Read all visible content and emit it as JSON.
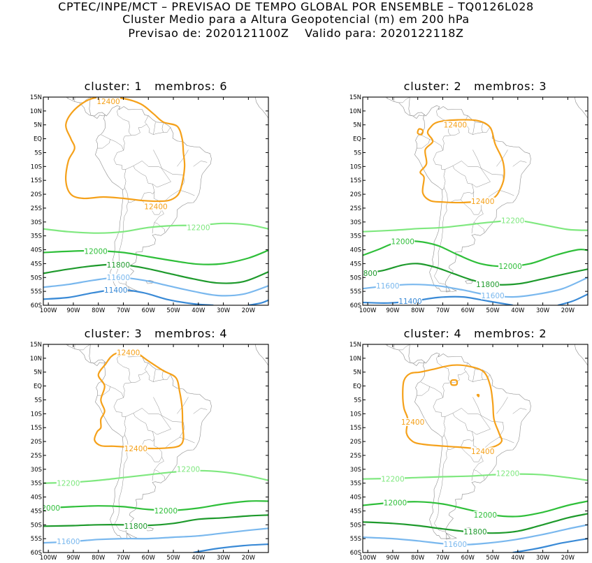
{
  "header": {
    "line1": "CPTEC/INPE/MCT – PREVISAO DE TEMPO GLOBAL POR ENSEMBLE – TQ0126L028",
    "line2": "Cluster Medio para a Altura Geopotencial (m) em 200 hPa",
    "line3": "Previsao de: 2020121100Z    Valido para: 2020122118Z"
  },
  "axes": {
    "lat_labels": [
      "15N",
      "10N",
      "5N",
      "EQ",
      "5S",
      "10S",
      "15S",
      "20S",
      "25S",
      "30S",
      "35S",
      "40S",
      "45S",
      "50S",
      "55S",
      "60S"
    ],
    "lon_labels": [
      "100W",
      "90W",
      "80W",
      "70W",
      "60W",
      "50W",
      "40W",
      "30W",
      "20W"
    ]
  },
  "colors": {
    "c12400": "#f5a11a",
    "c12200": "#7fe87f",
    "c12000": "#2fbf3a",
    "c11800": "#1e9a2c",
    "c11600": "#7ab8ee",
    "c11400": "#3a8ad6",
    "coast": "#8c8c8c"
  },
  "panels": [
    {
      "title": "cluster: 1   membros: 6",
      "labels": [
        {
          "text": "12400",
          "lon": -76,
          "lat": 13.5,
          "color": "c12400"
        },
        {
          "text": "12400",
          "lon": -57,
          "lat": -24.5,
          "color": "c12400"
        },
        {
          "text": "12200",
          "lon": -40,
          "lat": -32,
          "color": "c12200"
        },
        {
          "text": "12000",
          "lon": -81,
          "lat": -40.5,
          "color": "c12000"
        },
        {
          "text": "11800",
          "lon": -72,
          "lat": -45.5,
          "color": "c11800"
        },
        {
          "text": "11600",
          "lon": -72,
          "lat": -50,
          "color": "c11600"
        },
        {
          "text": "11400",
          "lon": -73,
          "lat": -54.5,
          "color": "c11400"
        }
      ]
    },
    {
      "title": "cluster: 2   membros: 3",
      "labels": [
        {
          "text": "12400",
          "lon": -65,
          "lat": 5,
          "color": "c12400"
        },
        {
          "text": "12400",
          "lon": -54,
          "lat": -22.5,
          "color": "c12400"
        },
        {
          "text": "12200",
          "lon": -42,
          "lat": -29.5,
          "color": "c12200"
        },
        {
          "text": "12000",
          "lon": -86,
          "lat": -37,
          "color": "c12000"
        },
        {
          "text": "12000",
          "lon": -43,
          "lat": -46,
          "color": "c12000"
        },
        {
          "text": "800",
          "lon": -99,
          "lat": -48.5,
          "color": "c11800"
        },
        {
          "text": "11800",
          "lon": -52,
          "lat": -52.5,
          "color": "c11800"
        },
        {
          "text": "11600",
          "lon": -92,
          "lat": -53,
          "color": "c11600"
        },
        {
          "text": "11600",
          "lon": -50,
          "lat": -56.5,
          "color": "c11600"
        },
        {
          "text": "11400",
          "lon": -83,
          "lat": -58.5,
          "color": "c11400"
        }
      ]
    },
    {
      "title": "cluster: 3   membros: 4",
      "labels": [
        {
          "text": "12400",
          "lon": -68,
          "lat": 12,
          "color": "c12400"
        },
        {
          "text": "12400",
          "lon": -65,
          "lat": -22.5,
          "color": "c12400"
        },
        {
          "text": "12200",
          "lon": -44,
          "lat": -30,
          "color": "c12200"
        },
        {
          "text": "12200",
          "lon": -92,
          "lat": -35,
          "color": "c12200"
        },
        {
          "text": "2000",
          "lon": -99,
          "lat": -44,
          "color": "c12000"
        },
        {
          "text": "12000",
          "lon": -53,
          "lat": -45,
          "color": "c12000"
        },
        {
          "text": "11800",
          "lon": -65,
          "lat": -50.5,
          "color": "c11800"
        },
        {
          "text": "11600",
          "lon": -92,
          "lat": -56,
          "color": "c11600"
        }
      ]
    },
    {
      "title": "cluster: 4   membros: 2",
      "labels": [
        {
          "text": "12400",
          "lon": -82,
          "lat": -13,
          "color": "c12400"
        },
        {
          "text": "12400",
          "lon": -54,
          "lat": -23.5,
          "color": "c12400"
        },
        {
          "text": "12200",
          "lon": -44,
          "lat": -31.5,
          "color": "c12200"
        },
        {
          "text": "12200",
          "lon": -90,
          "lat": -33.5,
          "color": "c12200"
        },
        {
          "text": "12000",
          "lon": -89,
          "lat": -42,
          "color": "c12000"
        },
        {
          "text": "12000",
          "lon": -53,
          "lat": -46.5,
          "color": "c12000"
        },
        {
          "text": "11800",
          "lon": -57,
          "lat": -52.5,
          "color": "c11800"
        },
        {
          "text": "11600",
          "lon": -65,
          "lat": -57,
          "color": "c11600"
        }
      ]
    }
  ]
}
